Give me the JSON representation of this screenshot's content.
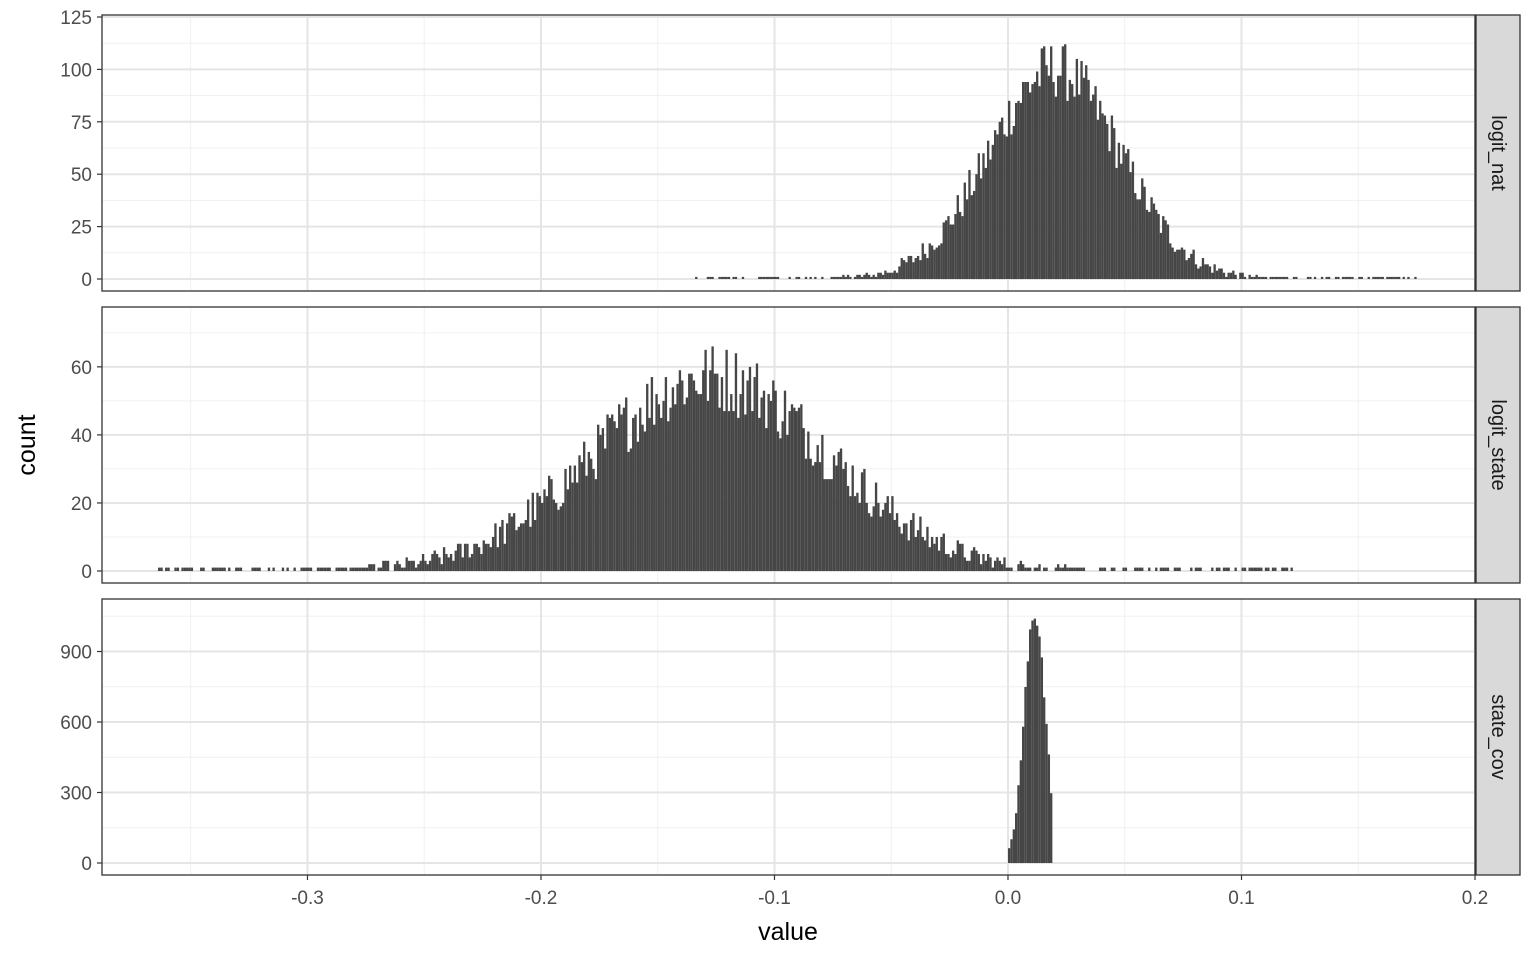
{
  "chart_data": {
    "type": "bar",
    "subtype": "faceted-histogram",
    "xlabel": "value",
    "ylabel": "count",
    "xlim": [
      -0.388,
      0.2
    ],
    "x_ticks": [
      -0.3,
      -0.2,
      -0.1,
      0.0,
      0.1,
      0.2
    ],
    "x_tick_labels": [
      "-0.3",
      "-0.2",
      "-0.1",
      "0.0",
      "0.1",
      "0.2"
    ],
    "grid": true,
    "bar_color": "#464646",
    "panel_border_color": "#333333",
    "strip_fill": "#d9d9d9",
    "bin_width": 0.001,
    "facets": [
      {
        "strip_label": "logit_nat",
        "ylim": [
          0,
          125
        ],
        "y_ticks": [
          0,
          25,
          50,
          75,
          100,
          125
        ],
        "y_tick_labels": [
          "0",
          "25",
          "50",
          "75",
          "100",
          "125"
        ],
        "distribution": {
          "shape": "gaussian",
          "center": 0.02,
          "sd": 0.028,
          "peak": 100,
          "x_min": -0.134,
          "x_max": 0.174,
          "max_observed": 122
        }
      },
      {
        "strip_label": "logit_state",
        "ylim": [
          0,
          77
        ],
        "y_ticks": [
          0,
          20,
          40,
          60
        ],
        "y_tick_labels": [
          "0",
          "20",
          "40",
          "60"
        ],
        "distribution": {
          "shape": "gaussian",
          "center": -0.127,
          "sd": 0.05,
          "peak": 57,
          "x_min": -0.365,
          "x_max": 0.122,
          "max_observed": 75
        }
      },
      {
        "strip_label": "state_cov",
        "ylim": [
          0,
          1115
        ],
        "y_ticks": [
          0,
          300,
          600,
          900
        ],
        "y_tick_labels": [
          "0",
          "300",
          "600",
          "900"
        ],
        "distribution": {
          "shape": "gaussian",
          "center": 0.0115,
          "sd": 0.0045,
          "peak": 1070,
          "x_min": 0.0,
          "x_max": 0.018,
          "max_observed": 1080
        }
      }
    ]
  }
}
